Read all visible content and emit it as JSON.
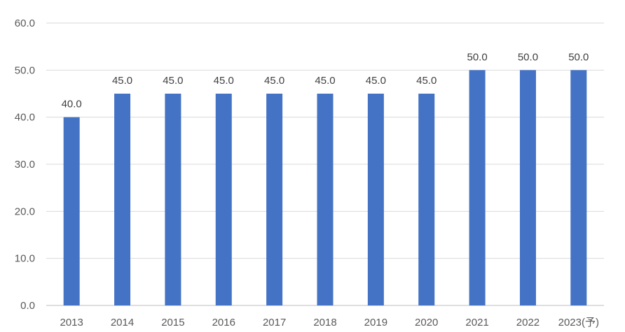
{
  "chart_data": {
    "type": "bar",
    "categories": [
      "2013",
      "2014",
      "2015",
      "2016",
      "2017",
      "2018",
      "2019",
      "2020",
      "2021",
      "2022",
      "2023(予)"
    ],
    "values": [
      40.0,
      45.0,
      45.0,
      45.0,
      45.0,
      45.0,
      45.0,
      45.0,
      50.0,
      50.0,
      50.0
    ],
    "data_labels": [
      "40.0",
      "45.0",
      "45.0",
      "45.0",
      "45.0",
      "45.0",
      "45.0",
      "45.0",
      "50.0",
      "50.0",
      "50.0"
    ],
    "y_ticks": [
      "0.0",
      "10.0",
      "20.0",
      "30.0",
      "40.0",
      "50.0",
      "60.0"
    ],
    "ylim": [
      0,
      60
    ],
    "grid": true,
    "bar_color": "#4472c4",
    "title": "",
    "xlabel": "",
    "ylabel": ""
  }
}
